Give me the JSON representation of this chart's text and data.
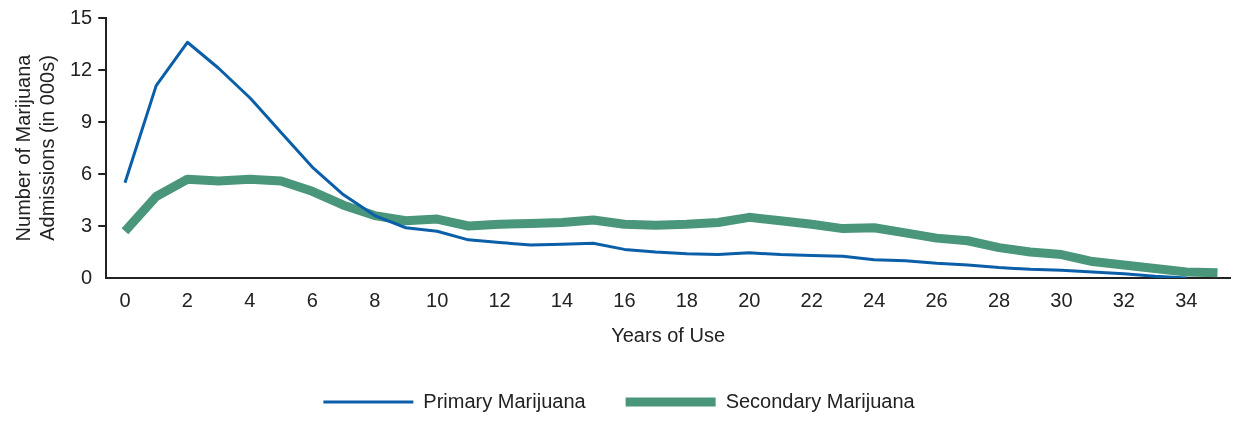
{
  "chart_data": {
    "type": "line",
    "xlabel": "Years of Use",
    "ylabel": "Number of Marijuana Admissions (in 000s)",
    "x": [
      0,
      1,
      2,
      3,
      4,
      5,
      6,
      7,
      8,
      9,
      10,
      11,
      12,
      13,
      14,
      15,
      16,
      17,
      18,
      19,
      20,
      21,
      22,
      23,
      24,
      25,
      26,
      27,
      28,
      29,
      30,
      31,
      32,
      33,
      34,
      35
    ],
    "series": [
      {
        "name": "Primary Marijuana",
        "color": "#0a5fa8",
        "x": [
          0,
          1,
          2,
          3,
          4,
          5,
          6,
          7,
          8,
          9,
          10,
          11,
          12,
          13,
          14,
          15,
          16,
          17,
          18,
          19,
          20,
          21,
          22,
          23,
          24,
          25,
          26,
          27,
          28,
          29,
          30,
          31,
          32,
          33,
          34
        ],
        "values": [
          5.5,
          11.1,
          13.6,
          12.1,
          10.4,
          8.4,
          6.4,
          4.8,
          3.6,
          2.9,
          2.7,
          2.2,
          2.05,
          1.9,
          1.95,
          2.0,
          1.65,
          1.5,
          1.4,
          1.35,
          1.45,
          1.35,
          1.3,
          1.25,
          1.05,
          1.0,
          0.85,
          0.75,
          0.6,
          0.5,
          0.45,
          0.35,
          0.25,
          0.1,
          0
        ]
      },
      {
        "name": "Secondary Marijuana",
        "color": "#4a967a",
        "values": [
          2.7,
          4.7,
          5.7,
          5.6,
          5.7,
          5.6,
          5.0,
          4.2,
          3.6,
          3.3,
          3.4,
          3.0,
          3.1,
          3.15,
          3.2,
          3.35,
          3.1,
          3.05,
          3.1,
          3.2,
          3.5,
          3.3,
          3.1,
          2.85,
          2.9,
          2.6,
          2.3,
          2.15,
          1.75,
          1.5,
          1.35,
          0.95,
          0.75,
          0.55,
          0.35,
          0.3
        ]
      }
    ],
    "xlim": [
      -0.6,
      35.4
    ],
    "xticks": [
      0,
      2,
      4,
      6,
      8,
      10,
      12,
      14,
      16,
      18,
      20,
      22,
      24,
      26,
      28,
      30,
      32,
      34
    ],
    "ylim": [
      0,
      15
    ],
    "yticks": [
      0,
      3,
      6,
      9,
      12,
      15
    ],
    "grid": false,
    "legend": "bottom",
    "marker": "none",
    "line_style": "solid"
  }
}
